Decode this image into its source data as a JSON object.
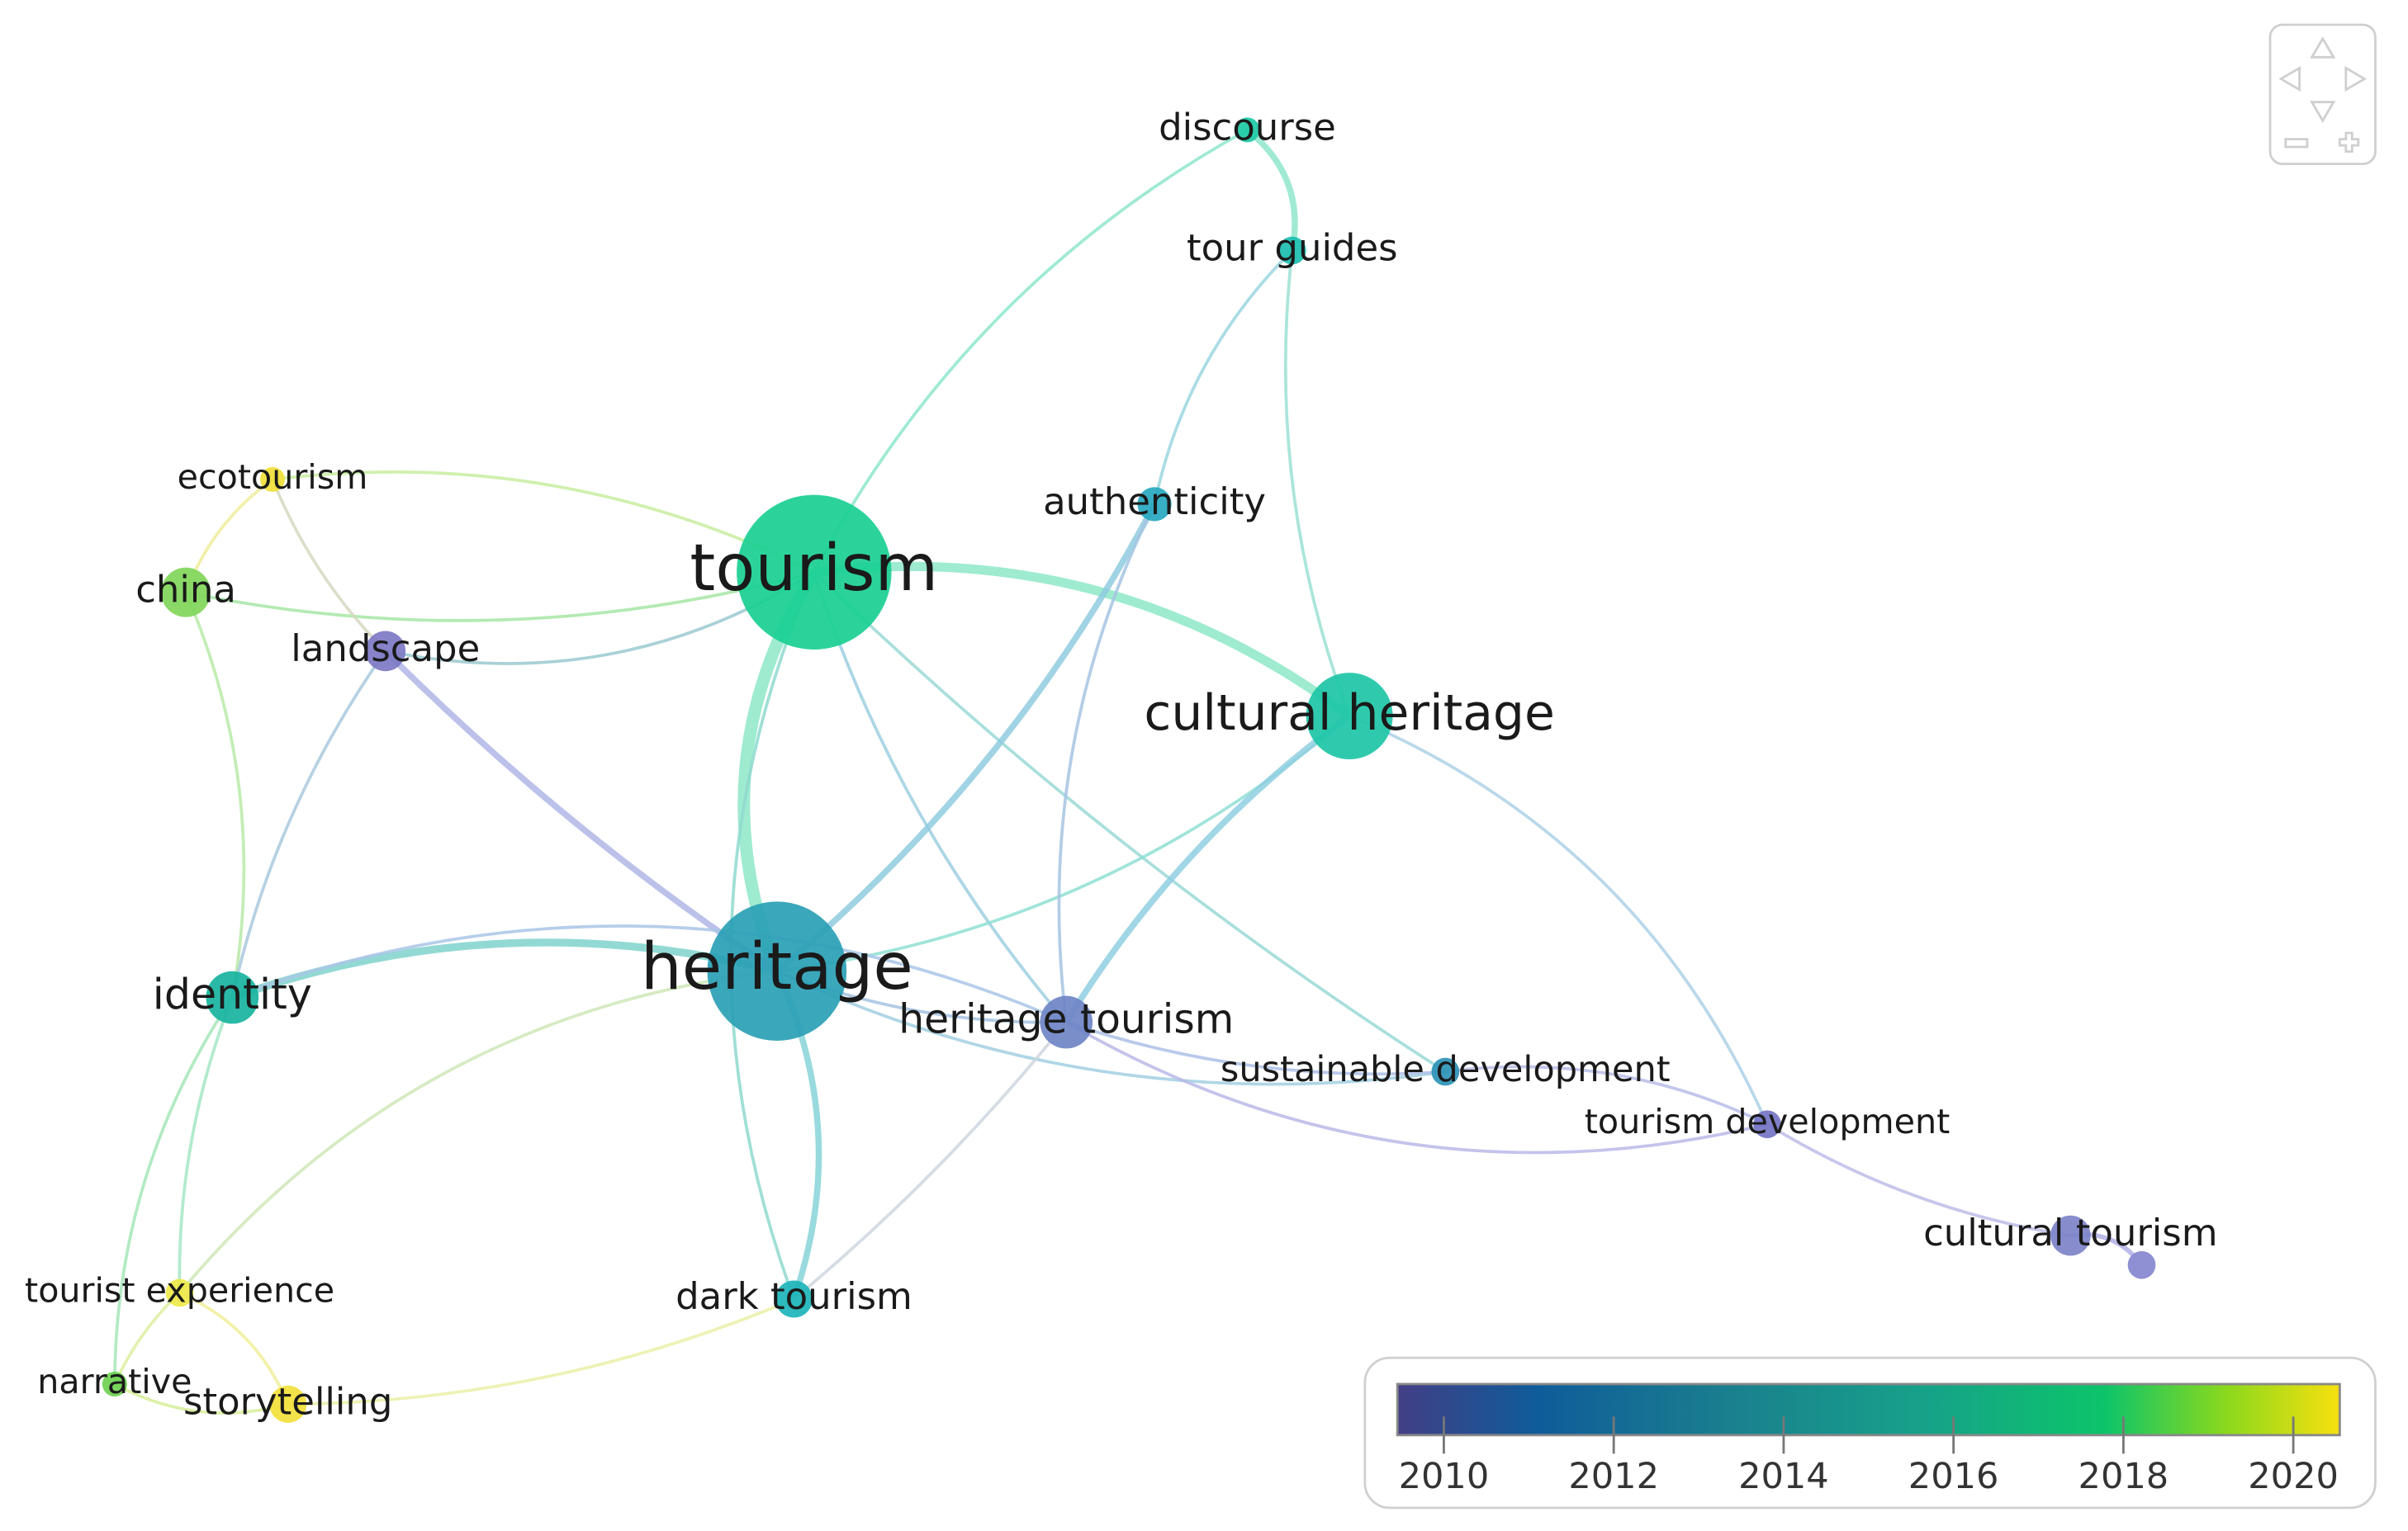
{
  "nodes": [
    {
      "label": "tourism"
    },
    {
      "label": "heritage"
    },
    {
      "label": "cultural heritage"
    },
    {
      "label": "discourse"
    },
    {
      "label": "tour guides"
    },
    {
      "label": "authenticity"
    },
    {
      "label": "ecotourism"
    },
    {
      "label": "china"
    },
    {
      "label": "landscape"
    },
    {
      "label": "identity"
    },
    {
      "label": "heritage tourism"
    },
    {
      "label": "sustainable development"
    },
    {
      "label": "tourism development"
    },
    {
      "label": "cultural tourism"
    },
    {
      "label": "tourist experience"
    },
    {
      "label": "dark tourism"
    },
    {
      "label": "narrative"
    },
    {
      "label": "storytelling"
    }
  ],
  "legend": {
    "ticks": [
      2010,
      2012,
      2014,
      2016,
      2018,
      2020
    ]
  }
}
